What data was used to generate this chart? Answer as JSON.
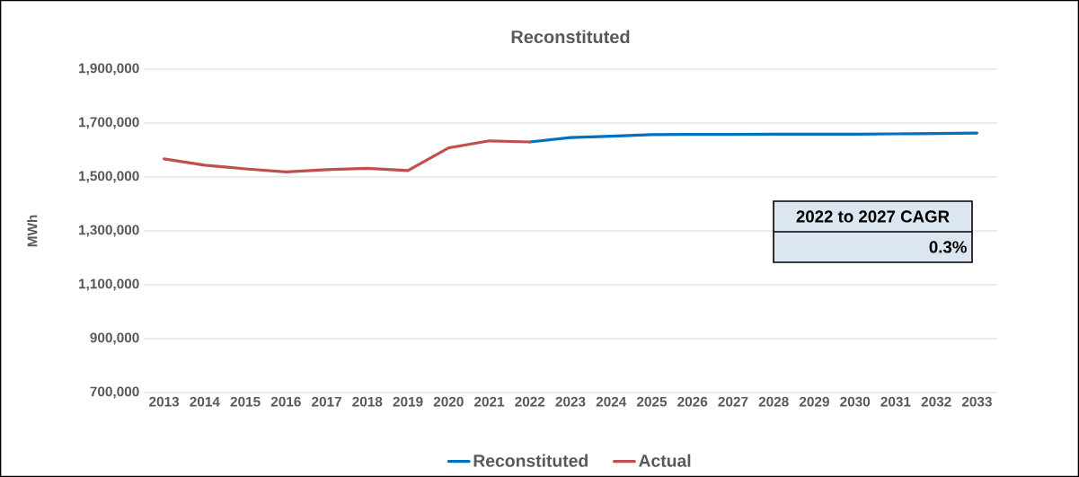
{
  "chart_data": {
    "type": "line",
    "title": "Reconstituted",
    "ylabel": "MWh",
    "categories": [
      "2013",
      "2014",
      "2015",
      "2016",
      "2017",
      "2018",
      "2019",
      "2020",
      "2021",
      "2022",
      "2023",
      "2024",
      "2025",
      "2026",
      "2027",
      "2028",
      "2029",
      "2030",
      "2031",
      "2032",
      "2033"
    ],
    "series": [
      {
        "name": "Reconstituted",
        "color": "#0070c0",
        "values": [
          null,
          null,
          null,
          null,
          null,
          null,
          null,
          null,
          null,
          1630000,
          1646000,
          1651000,
          1657000,
          1658000,
          1658000,
          1659000,
          1659000,
          1659000,
          1660000,
          1661000,
          1663000
        ]
      },
      {
        "name": "Actual",
        "color": "#c0504d",
        "values": [
          1567000,
          1544000,
          1530000,
          1519000,
          1527000,
          1532000,
          1524000,
          1608000,
          1634000,
          1630000,
          null,
          null,
          null,
          null,
          null,
          null,
          null,
          null,
          null,
          null,
          null
        ]
      }
    ],
    "ylim": [
      700000,
      1900000
    ],
    "yticks": [
      {
        "value": 700000,
        "label": "700,000"
      },
      {
        "value": 900000,
        "label": "900,000"
      },
      {
        "value": 1100000,
        "label": "1,100,000"
      },
      {
        "value": 1300000,
        "label": "1,300,000"
      },
      {
        "value": 1500000,
        "label": "1,500,000"
      },
      {
        "value": 1700000,
        "label": "1,700,000"
      },
      {
        "value": 1900000,
        "label": "1,900,000"
      }
    ],
    "grid": "y",
    "legend": "bottom",
    "marker": "none",
    "line_style": "solid",
    "annotations": [
      "2022  to 2027 CAGR",
      "0.3%"
    ]
  }
}
